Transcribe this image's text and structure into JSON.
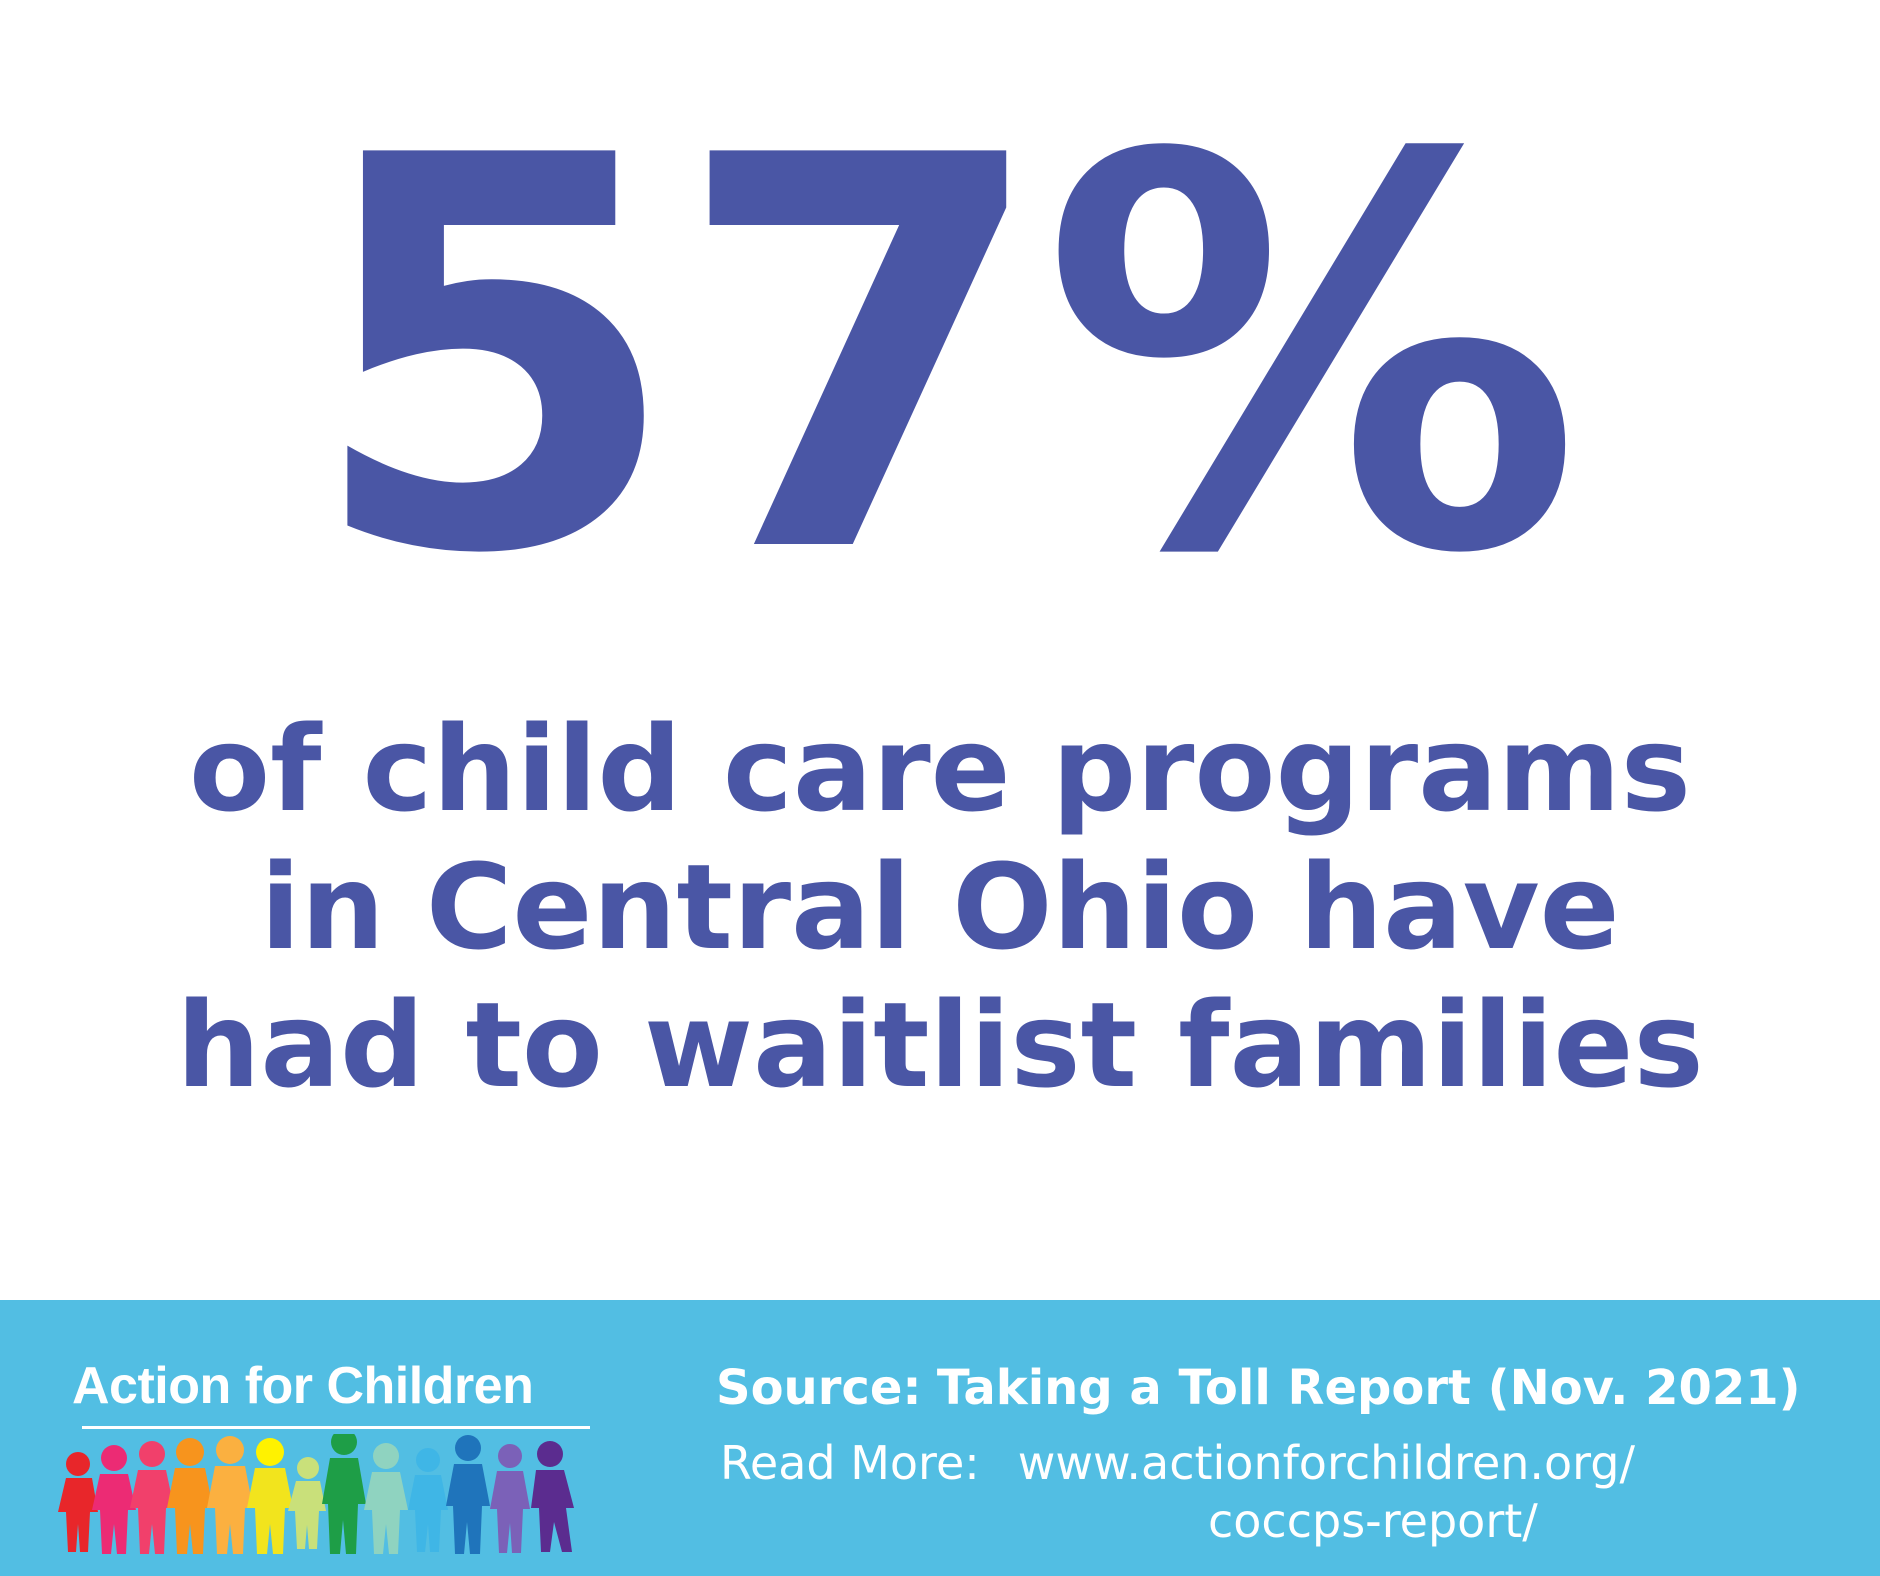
{
  "headline": {
    "stat": "57%"
  },
  "statement": {
    "lines": [
      "of child care programs",
      "in Central Ohio have",
      "had to waitlist families"
    ]
  },
  "footer": {
    "logo_text": "Action for Children",
    "logo_icon": "children-silhouettes-icon",
    "source_label": "Source:",
    "source_text": "Taking a Toll Report (Nov. 2021)",
    "read_more_label": "Read More:",
    "url_line1": "www.actionforchildren.org/",
    "url_line2": "coccps-report/"
  },
  "colors": {
    "stat_text": "#4a56a5",
    "footer_bg": "#52bee3",
    "footer_text": "#ffffff"
  }
}
